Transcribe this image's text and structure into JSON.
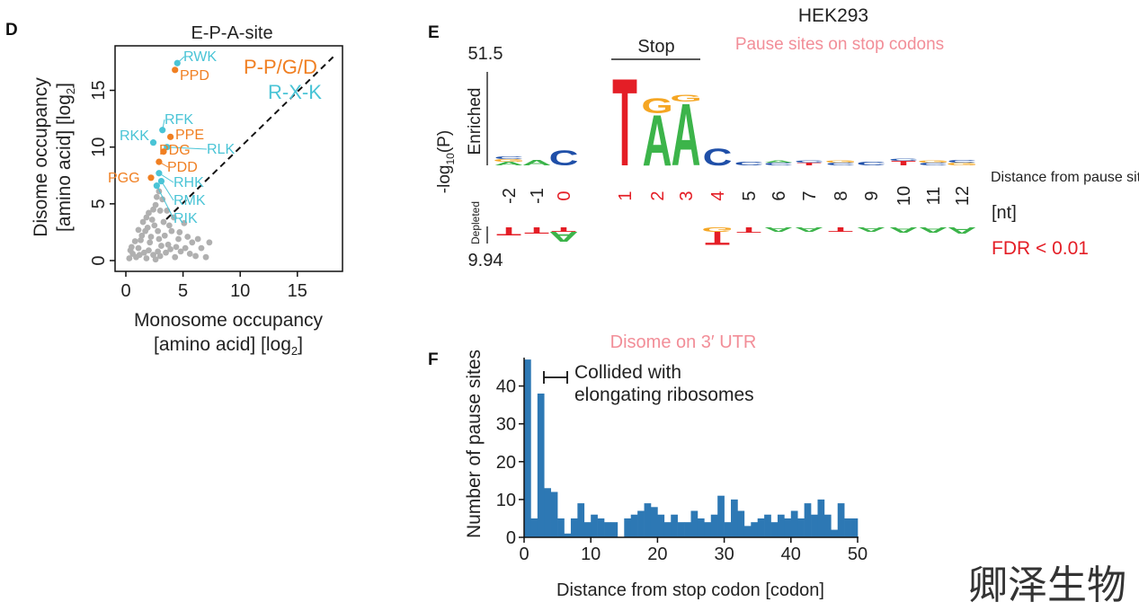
{
  "colors": {
    "orange": "#f07f22",
    "cyan": "#4ac4d6",
    "gray": "#b0b0b0",
    "pink": "#f28e98",
    "red": "#e41e26",
    "blue": "#2d78b4",
    "A": "#3cb44a",
    "C": "#1f4fa8",
    "G": "#f5a623",
    "T": "#e41e26"
  },
  "panel_d": {
    "letter": "D",
    "title": "E-P-A-site",
    "y_label_1": "Disome occupancy",
    "y_label_2a": "[amino acid] [log",
    "y_label_2b": "2",
    "y_label_2c": "]",
    "x_label_1": "Monosome occupancy",
    "x_label_2a": "[amino acid] [log",
    "x_label_2b": "2",
    "x_label_2c": "]",
    "legend_orange": "P-P/G/D",
    "legend_cyan": "R-X-K"
  },
  "panel_e": {
    "letter": "E",
    "title": "HEK293",
    "subtitle": "Pause sites on stop codons",
    "stop_label": "Stop",
    "y_top": "51.5",
    "y_bottom": "9.94",
    "enriched": "Enriched",
    "depleted": "Depleted",
    "ylab_a": "-log",
    "ylab_b": "10",
    "ylab_c": "(P)",
    "xlabel": "Distance from pause site",
    "xunit": "[nt]",
    "fdr": "FDR < 0.01"
  },
  "panel_f": {
    "letter": "F",
    "annotation": "Disome on 3′ UTR",
    "collided_1": "Collided with",
    "collided_2": "elongating ribosomes"
  },
  "watermark": "卿泽生物",
  "chart_data": [
    {
      "type": "scatter",
      "title": "E-P-A-site",
      "xlabel": "Monosome occupancy [amino acid] [log2]",
      "ylabel": "Disome occupancy [amino acid] [log2]",
      "xlim": [
        -1,
        19
      ],
      "ylim": [
        -0.8,
        19
      ],
      "xticks": [
        0,
        5,
        10,
        15
      ],
      "yticks": [
        0,
        5,
        10,
        15
      ],
      "diagonal": "y = x (dashed)",
      "labeled_points": [
        {
          "label": "RWK",
          "x": 4.5,
          "y": 17.4,
          "group": "R-X-K"
        },
        {
          "label": "PPD",
          "x": 4.3,
          "y": 16.8,
          "group": "P-P/G/D"
        },
        {
          "label": "RFK",
          "x": 3.2,
          "y": 11.5,
          "group": "R-X-K"
        },
        {
          "label": "PPE",
          "x": 3.9,
          "y": 10.9,
          "group": "P-P/G/D"
        },
        {
          "label": "RKK",
          "x": 2.4,
          "y": 10.4,
          "group": "R-X-K"
        },
        {
          "label": "RLK",
          "x": 3.6,
          "y": 10.0,
          "group": "R-X-K"
        },
        {
          "label": "PDG",
          "x": 3.3,
          "y": 9.6,
          "group": "P-P/G/D"
        },
        {
          "label": "PDD",
          "x": 2.9,
          "y": 8.7,
          "group": "P-P/G/D"
        },
        {
          "label": "RHK",
          "x": 2.9,
          "y": 7.7,
          "group": "R-X-K"
        },
        {
          "label": "PGG",
          "x": 2.2,
          "y": 7.3,
          "group": "P-P/G/D"
        },
        {
          "label": "RMK",
          "x": 3.1,
          "y": 7.0,
          "group": "R-X-K"
        },
        {
          "label": "RIK",
          "x": 2.7,
          "y": 6.6,
          "group": "R-X-K"
        }
      ],
      "background": [
        [
          2.9,
          6.1
        ],
        [
          3.2,
          5.4
        ],
        [
          2.6,
          4.9
        ],
        [
          3.6,
          4.4
        ],
        [
          4.2,
          3.8
        ],
        [
          5.1,
          3.3
        ],
        [
          2.3,
          3.6
        ],
        [
          1.9,
          2.9
        ],
        [
          2.8,
          2.6
        ],
        [
          3.4,
          2.2
        ],
        [
          4.6,
          1.9
        ],
        [
          5.8,
          1.6
        ],
        [
          6.6,
          1.1
        ],
        [
          7.3,
          1.6
        ],
        [
          1.4,
          2.2
        ],
        [
          2.1,
          1.6
        ],
        [
          3.1,
          1.3
        ],
        [
          3.9,
          1.0
        ],
        [
          4.8,
          0.8
        ],
        [
          5.6,
          0.6
        ],
        [
          1.1,
          1.1
        ],
        [
          1.6,
          0.7
        ],
        [
          2.4,
          0.5
        ],
        [
          3.0,
          0.4
        ],
        [
          4.3,
          0.3
        ],
        [
          0.6,
          0.6
        ],
        [
          0.9,
          0.3
        ],
        [
          1.8,
          0.2
        ],
        [
          2.6,
          0.1
        ],
        [
          0.3,
          0.2
        ],
        [
          1.3,
          1.8
        ],
        [
          2.2,
          2.1
        ],
        [
          2.9,
          1.9
        ],
        [
          3.7,
          1.4
        ],
        [
          1.7,
          2.6
        ],
        [
          2.5,
          3.1
        ],
        [
          3.3,
          3.4
        ],
        [
          2.0,
          4.2
        ],
        [
          1.5,
          3.4
        ],
        [
          1.1,
          2.7
        ],
        [
          0.8,
          1.7
        ],
        [
          0.5,
          1.2
        ],
        [
          4.0,
          2.6
        ],
        [
          4.4,
          1.2
        ],
        [
          5.2,
          1.1
        ],
        [
          6.1,
          0.4
        ],
        [
          7.0,
          0.3
        ],
        [
          2.7,
          5.6
        ],
        [
          3.0,
          4.4
        ],
        [
          2.4,
          4.5
        ],
        [
          1.8,
          3.8
        ],
        [
          3.8,
          3.1
        ],
        [
          4.7,
          2.5
        ],
        [
          5.4,
          2.1
        ],
        [
          6.3,
          1.9
        ],
        [
          1.2,
          0.5
        ],
        [
          2.0,
          0.9
        ],
        [
          2.8,
          0.8
        ],
        [
          3.5,
          0.7
        ],
        [
          0.4,
          0.9
        ]
      ]
    },
    {
      "type": "sequence_logo",
      "title": "HEK293 — Pause sites on stop codons",
      "xlabel": "Distance from pause site [nt]",
      "ylabel": "-log10(P)",
      "y_enriched_max": 51.5,
      "y_depleted_max": 9.94,
      "positions": [
        -2,
        -1,
        0,
        1,
        2,
        3,
        4,
        5,
        6,
        7,
        8,
        9,
        10,
        11,
        12
      ],
      "red_positions": [
        0,
        1,
        2,
        3,
        4
      ],
      "stop_codon_positions": [
        1,
        2,
        3
      ],
      "enriched": [
        {
          "pos": -2,
          "letters": [
            {
              "b": "A",
              "h": 0.04
            },
            {
              "b": "G",
              "h": 0.03
            },
            {
              "b": "C",
              "h": 0.03
            }
          ]
        },
        {
          "pos": -1,
          "letters": [
            {
              "b": "A",
              "h": 0.06
            }
          ]
        },
        {
          "pos": 0,
          "letters": [
            {
              "b": "C",
              "h": 0.17
            }
          ]
        },
        {
          "pos": 1,
          "letters": [
            {
              "b": "T",
              "h": 1.0
            }
          ]
        },
        {
          "pos": 2,
          "letters": [
            {
              "b": "A",
              "h": 0.58
            },
            {
              "b": "G",
              "h": 0.17
            }
          ]
        },
        {
          "pos": 3,
          "letters": [
            {
              "b": "A",
              "h": 0.71
            },
            {
              "b": "G",
              "h": 0.08
            }
          ]
        },
        {
          "pos": 4,
          "letters": [
            {
              "b": "C",
              "h": 0.19
            }
          ]
        },
        {
          "pos": 5,
          "letters": [
            {
              "b": "C",
              "h": 0.04
            }
          ]
        },
        {
          "pos": 6,
          "letters": [
            {
              "b": "C",
              "h": 0.03
            },
            {
              "b": "A",
              "h": 0.02
            }
          ]
        },
        {
          "pos": 7,
          "letters": [
            {
              "b": "T",
              "h": 0.03
            },
            {
              "b": "C",
              "h": 0.02
            }
          ]
        },
        {
          "pos": 8,
          "letters": [
            {
              "b": "C",
              "h": 0.03
            },
            {
              "b": "G",
              "h": 0.02
            }
          ]
        },
        {
          "pos": 9,
          "letters": [
            {
              "b": "C",
              "h": 0.04
            }
          ]
        },
        {
          "pos": 10,
          "letters": [
            {
              "b": "T",
              "h": 0.05
            },
            {
              "b": "C",
              "h": 0.02
            }
          ]
        },
        {
          "pos": 11,
          "letters": [
            {
              "b": "C",
              "h": 0.03
            },
            {
              "b": "G",
              "h": 0.02
            }
          ]
        },
        {
          "pos": 12,
          "letters": [
            {
              "b": "G",
              "h": 0.03
            },
            {
              "b": "C",
              "h": 0.03
            }
          ]
        }
      ],
      "depleted": [
        {
          "pos": -2,
          "letters": [
            {
              "b": "T",
              "h": 0.45
            }
          ]
        },
        {
          "pos": -1,
          "letters": [
            {
              "b": "T",
              "h": 0.35
            }
          ]
        },
        {
          "pos": 0,
          "letters": [
            {
              "b": "T",
              "h": 0.25
            },
            {
              "b": "A",
              "h": 0.55
            }
          ]
        },
        {
          "pos": 4,
          "letters": [
            {
              "b": "G",
              "h": 0.25
            },
            {
              "b": "T",
              "h": 0.75
            }
          ]
        },
        {
          "pos": 5,
          "letters": [
            {
              "b": "T",
              "h": 0.3
            }
          ]
        },
        {
          "pos": 6,
          "letters": [
            {
              "b": "A",
              "h": 0.25
            }
          ]
        },
        {
          "pos": 7,
          "letters": [
            {
              "b": "A",
              "h": 0.25
            }
          ]
        },
        {
          "pos": 8,
          "letters": [
            {
              "b": "T",
              "h": 0.25
            }
          ]
        },
        {
          "pos": 9,
          "letters": [
            {
              "b": "A",
              "h": 0.25
            }
          ]
        },
        {
          "pos": 10,
          "letters": [
            {
              "b": "A",
              "h": 0.3
            }
          ]
        },
        {
          "pos": 11,
          "letters": [
            {
              "b": "A",
              "h": 0.3
            }
          ]
        },
        {
          "pos": 12,
          "letters": [
            {
              "b": "A",
              "h": 0.35
            }
          ]
        }
      ]
    },
    {
      "type": "bar",
      "title": "Disome on 3′ UTR",
      "xlabel": "Distance from stop codon [codon]",
      "ylabel": "Number of pause sites",
      "xlim": [
        0,
        50
      ],
      "ylim": [
        0,
        47
      ],
      "xticks": [
        0,
        10,
        20,
        30,
        40,
        50
      ],
      "yticks": [
        0,
        10,
        20,
        30,
        40
      ],
      "bin_width": 1,
      "collided_bracket_codons": [
        2,
        5
      ],
      "bins": [
        0,
        1,
        2,
        3,
        4,
        5,
        6,
        7,
        8,
        9,
        10,
        11,
        12,
        13,
        14,
        15,
        16,
        17,
        18,
        19,
        20,
        21,
        22,
        23,
        24,
        25,
        26,
        27,
        28,
        29,
        30,
        31,
        32,
        33,
        34,
        35,
        36,
        37,
        38,
        39,
        40,
        41,
        42,
        43,
        44,
        45,
        46,
        47,
        48,
        49
      ],
      "values": [
        47,
        5,
        38,
        13,
        12,
        5,
        1,
        5,
        9,
        4,
        6,
        5,
        4,
        4,
        0,
        5,
        6,
        7,
        9,
        8,
        6,
        4,
        6,
        4,
        4,
        7,
        5,
        4,
        6,
        11,
        4,
        10,
        7,
        3,
        4,
        5,
        6,
        4,
        6,
        5,
        7,
        5,
        9,
        6,
        10,
        6,
        2,
        9,
        5,
        5
      ]
    }
  ]
}
